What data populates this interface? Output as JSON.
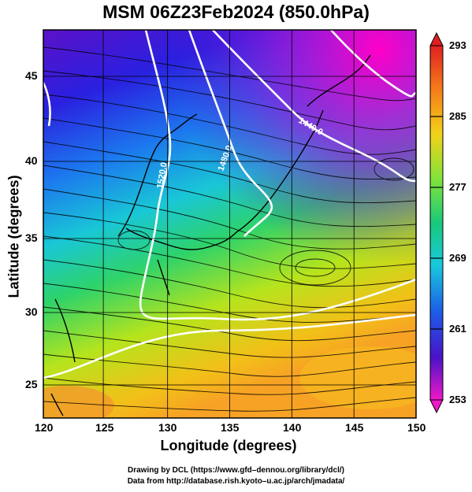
{
  "title": "MSM 06Z23Feb2024 (850.0hPa)",
  "xlabel": "Longitude (degrees)",
  "ylabel": "Latitude (degrees)",
  "credits": {
    "line1": "Drawing by DCL (https://www.gfd–dennou.org/library/dcl/)",
    "line2": "Data from http://database.rish.kyoto–u.ac.jp/arch/jmadata/"
  },
  "map": {
    "lon_range": [
      120,
      150
    ],
    "lat_range": [
      22.4,
      48
    ],
    "lon_ticks": [
      "120",
      "125",
      "130",
      "135",
      "140",
      "145",
      "150"
    ],
    "lat_ticks": [
      "25",
      "30",
      "35",
      "40",
      "45"
    ],
    "contour_labels": [
      "1440.0",
      "1480.0",
      "1520.0"
    ]
  },
  "colorbar": {
    "ticks": [
      "293",
      "285",
      "277",
      "269",
      "261",
      "253"
    ],
    "range": [
      253,
      293
    ]
  }
}
